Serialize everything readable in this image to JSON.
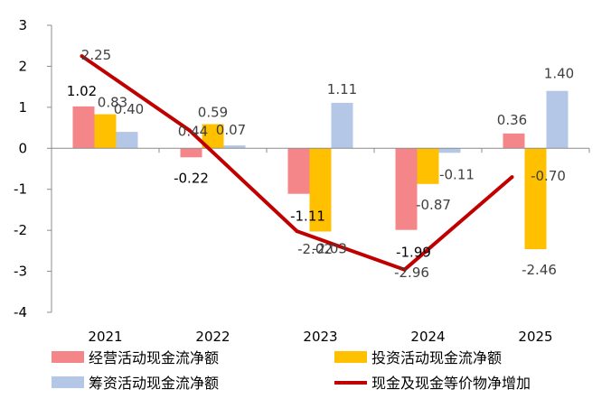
{
  "chart_data": {
    "type": "bar",
    "categories": [
      "2021",
      "2022",
      "2023",
      "2024",
      "2025"
    ],
    "ylim": [
      -4,
      3
    ],
    "yticks": [
      3,
      2,
      1,
      0,
      -1,
      -2,
      -3,
      -4
    ],
    "grid": false,
    "legend_position": "bottom",
    "series": [
      {
        "name": "经营活动现金流净额",
        "type": "bar",
        "color": "#f4868a",
        "values": [
          1.02,
          -0.22,
          -1.11,
          -1.99,
          0.36
        ],
        "labels": [
          "1.02",
          "-0.22",
          "-1.11",
          "-1.99",
          "0.36"
        ]
      },
      {
        "name": "投资活动现金流净额",
        "type": "bar",
        "color": "#ffc000",
        "values": [
          0.83,
          0.59,
          -2.03,
          -0.87,
          -2.46
        ],
        "labels": [
          "0.83",
          "0.59",
          "-2.03",
          "-0.87",
          "-2.46"
        ]
      },
      {
        "name": "筹资活动现金流净额",
        "type": "bar",
        "color": "#b4c7e7",
        "values": [
          0.4,
          0.07,
          1.11,
          -0.11,
          1.4
        ],
        "labels": [
          "0.40",
          "0.07",
          "1.11",
          "-0.11",
          "1.40"
        ]
      },
      {
        "name": "现金及现金等价物净增加",
        "type": "line",
        "color": "#c00000",
        "values": [
          2.25,
          0.44,
          -2.02,
          -2.96,
          -0.7
        ],
        "labels": [
          "2.25",
          "0.44",
          "-2.02",
          "-2.96",
          "-0.70"
        ]
      }
    ]
  }
}
